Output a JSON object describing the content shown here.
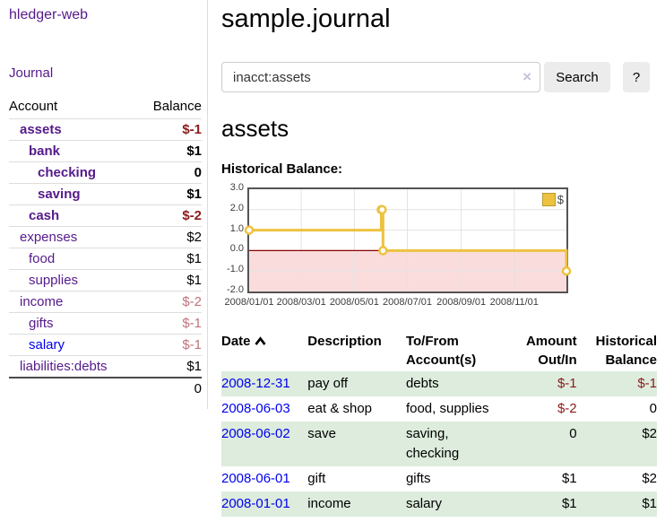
{
  "app": {
    "title": "hledger-web",
    "nav_journal": "Journal"
  },
  "sidebar": {
    "col_account": "Account",
    "col_balance": "Balance",
    "accounts": [
      {
        "name": "assets",
        "indent": 1,
        "balance": "$-1",
        "bold": true
      },
      {
        "name": "bank",
        "indent": 2,
        "balance": "$1",
        "bold": true
      },
      {
        "name": "checking",
        "indent": 3,
        "balance": "0",
        "bold": true
      },
      {
        "name": "saving",
        "indent": 3,
        "balance": "$1",
        "bold": true
      },
      {
        "name": "cash",
        "indent": 2,
        "balance": "$-2",
        "bold": true
      },
      {
        "name": "expenses",
        "indent": 1,
        "balance": "$2",
        "bold": false
      },
      {
        "name": "food",
        "indent": 2,
        "balance": "$1",
        "bold": false
      },
      {
        "name": "supplies",
        "indent": 2,
        "balance": "$1",
        "bold": false
      },
      {
        "name": "income",
        "indent": 1,
        "balance": "$-2",
        "bold": false
      },
      {
        "name": "gifts",
        "indent": 2,
        "balance": "$-1",
        "bold": false
      },
      {
        "name": "salary",
        "indent": 2,
        "balance": "$-1",
        "bold": false,
        "link_color": "blue"
      },
      {
        "name": "liabilities:debts",
        "indent": 1,
        "balance": "$1",
        "bold": false
      }
    ],
    "total": "0"
  },
  "header": {
    "title": "sample.journal"
  },
  "search": {
    "value": "inacct:assets",
    "clear_icon": "×",
    "button": "Search",
    "help": "?"
  },
  "account_page": {
    "title": "assets",
    "chart_label": "Historical Balance:"
  },
  "chart_data": {
    "type": "line",
    "title": "Historical Balance",
    "series": [
      {
        "name": "$",
        "color": "#edc240",
        "step": true,
        "points": [
          {
            "date": "2008-01-01",
            "balance": 1
          },
          {
            "date": "2008-06-01",
            "balance": 2
          },
          {
            "date": "2008-06-02",
            "balance": 2
          },
          {
            "date": "2008-06-03",
            "balance": 0
          },
          {
            "date": "2008-12-31",
            "balance": -1
          }
        ]
      }
    ],
    "xrange": [
      "2008-01-01",
      "2008-12-31"
    ],
    "ylim": [
      -2.0,
      3.0
    ],
    "yticks": [
      3.0,
      2.0,
      1.0,
      0.0,
      -1.0,
      -2.0
    ],
    "xticks": [
      {
        "date": "2008-01-01",
        "label": "2008/01/01"
      },
      {
        "date": "2008-03-01",
        "label": "2008/03/01"
      },
      {
        "date": "2008-05-01",
        "label": "2008/05/01"
      },
      {
        "date": "2008-07-01",
        "label": "2008/07/01"
      },
      {
        "date": "2008-09-01",
        "label": "2008/09/01"
      },
      {
        "date": "2008-11-01",
        "label": "2008/11/01"
      }
    ],
    "legend": {
      "position": "top-right",
      "label": "$"
    },
    "grid": true,
    "negative_region_fill": "#fbdcdc",
    "zero_line_color": "#8b0000",
    "gridline_color": "#e3e3e3"
  },
  "register": {
    "columns": {
      "date": "Date",
      "description": "Description",
      "accounts": "To/From Account(s)",
      "amount": "Amount Out/In",
      "balance": "Historical Balance"
    },
    "rows": [
      {
        "date": "2008-12-31",
        "description": "pay off",
        "accounts": "debts",
        "amount": "$-1",
        "balance": "$-1"
      },
      {
        "date": "2008-06-03",
        "description": "eat & shop",
        "accounts": "food, supplies",
        "amount": "$-2",
        "balance": "0"
      },
      {
        "date": "2008-06-02",
        "description": "save",
        "accounts": "saving, checking",
        "amount": "0",
        "balance": "$2"
      },
      {
        "date": "2008-06-01",
        "description": "gift",
        "accounts": "gifts",
        "amount": "$1",
        "balance": "$2"
      },
      {
        "date": "2008-01-01",
        "description": "income",
        "accounts": "salary",
        "amount": "$1",
        "balance": "$1"
      }
    ]
  },
  "colors": {
    "link_purple": "#551A8B",
    "link_blue": "#0000EE",
    "negative_strong": "#8b1a1a",
    "negative_soft": "#c0737a",
    "row_stripe_green": "#ddecdd",
    "chart_line_gold": "#edc240"
  }
}
